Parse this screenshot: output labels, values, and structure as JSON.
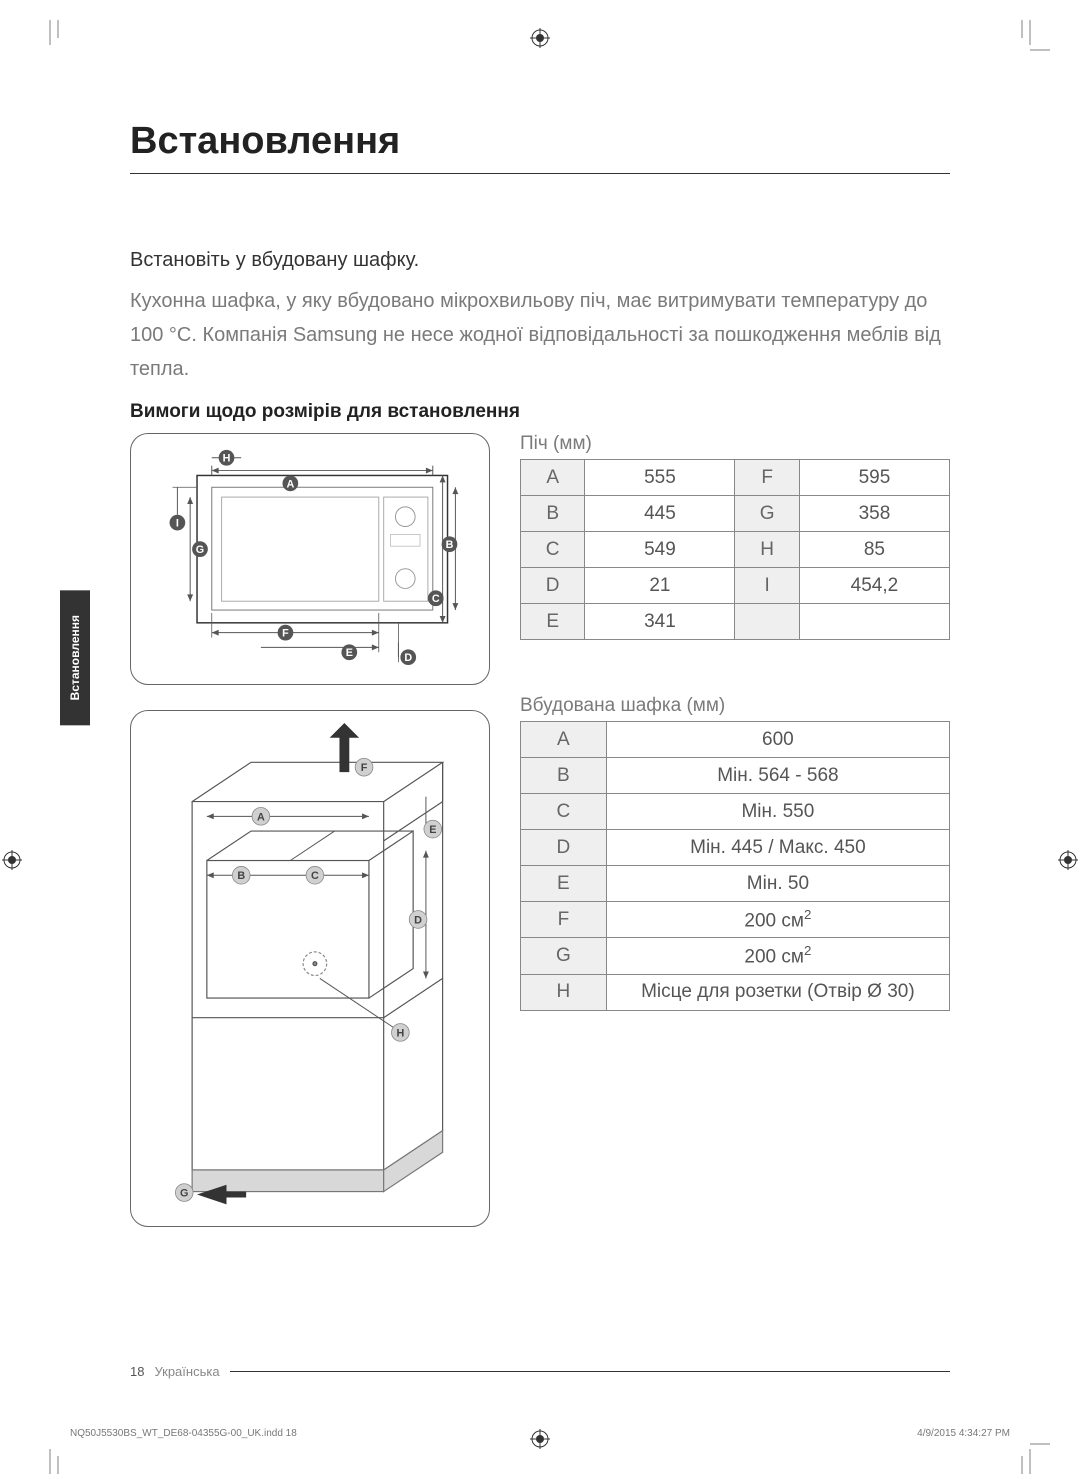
{
  "main_title": "Встановлення",
  "side_tab": "Встановлення",
  "sub_heading": "Встановіть у вбудовану шафку.",
  "body_text": "Кухонна шафка, у яку вбудовано мікрохвильову піч, має витримувати температуру до 100 °C. Компанія Samsung не несе жодної відповідальності за пошкодження меблів від тепла.",
  "section_heading": "Вимоги щодо розмірів для встановлення",
  "table1": {
    "caption": "Піч (мм)",
    "rows": [
      {
        "l1": "A",
        "v1": "555",
        "l2": "F",
        "v2": "595"
      },
      {
        "l1": "B",
        "v1": "445",
        "l2": "G",
        "v2": "358"
      },
      {
        "l1": "C",
        "v1": "549",
        "l2": "H",
        "v2": "85"
      },
      {
        "l1": "D",
        "v1": "21",
        "l2": "I",
        "v2": "454,2"
      },
      {
        "l1": "E",
        "v1": "341",
        "l2": "",
        "v2": ""
      }
    ]
  },
  "table2": {
    "caption": "Вбудована шафка (мм)",
    "rows": [
      {
        "l": "A",
        "v": "600"
      },
      {
        "l": "B",
        "v": "Мін. 564 - 568"
      },
      {
        "l": "C",
        "v": "Мін. 550"
      },
      {
        "l": "D",
        "v": "Мін. 445 / Макс. 450"
      },
      {
        "l": "E",
        "v": "Мін. 50"
      },
      {
        "l": "F",
        "v": "200 см²"
      },
      {
        "l": "G",
        "v": "200 см²"
      },
      {
        "l": "H",
        "v": "Місце для розетки (Отвір Ø 30)"
      }
    ]
  },
  "diagram1_labels": [
    "A",
    "B",
    "C",
    "D",
    "E",
    "F",
    "G",
    "H",
    "I"
  ],
  "diagram2_labels": [
    "A",
    "B",
    "C",
    "D",
    "E",
    "F",
    "G",
    "H"
  ],
  "footer": {
    "pagenum": "18",
    "lang": "Українська"
  },
  "meta": {
    "file": "NQ50J5530BS_WT_DE68-04355G-00_UK.indd   18",
    "date": "4/9/2015   4:34:27 PM"
  },
  "colors": {
    "text_primary": "#333333",
    "text_secondary": "#7a7a7a",
    "border": "#888888",
    "cell_bg": "#efefef",
    "tab_bg": "#333333"
  }
}
